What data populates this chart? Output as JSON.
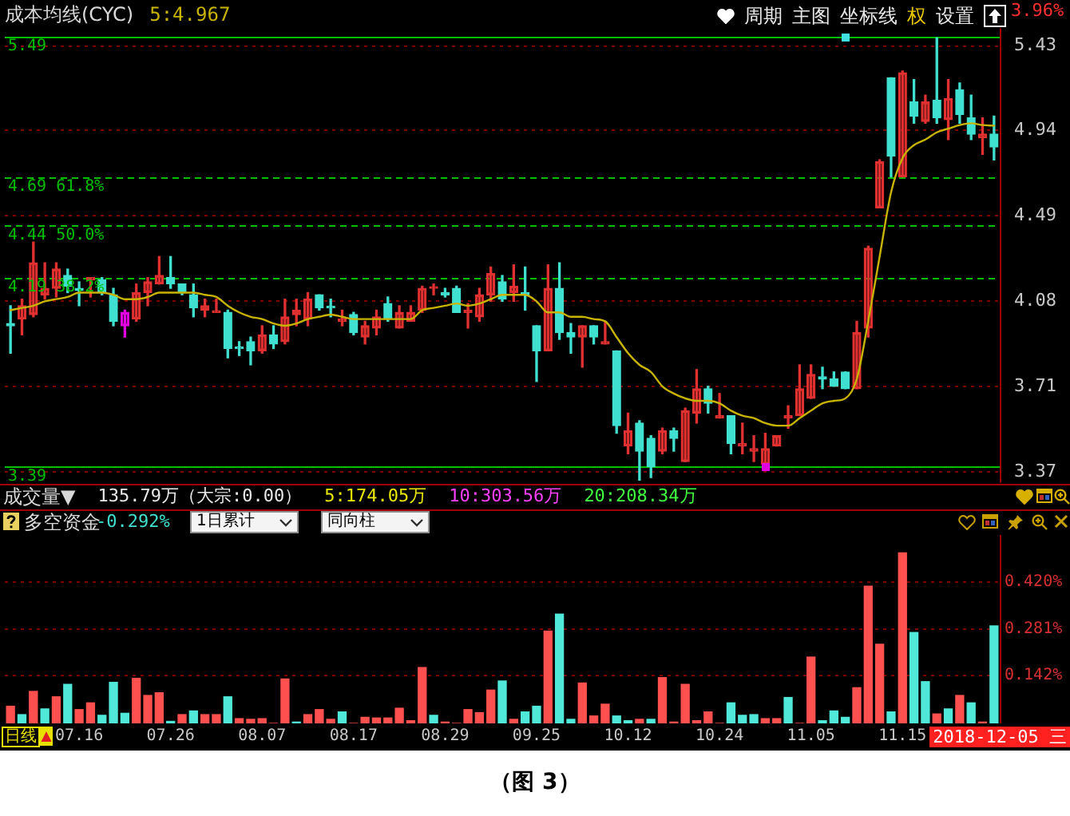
{
  "chart_data": [
    {
      "type": "candlestick",
      "title": "成本均线(CYC)",
      "categories": [
        null,
        null,
        null,
        null,
        null,
        null,
        "07.16",
        null,
        null,
        null,
        null,
        null,
        null,
        null,
        "07.26",
        null,
        null,
        null,
        null,
        null,
        null,
        null,
        "08.07",
        null,
        null,
        null,
        null,
        null,
        null,
        null,
        "08.17",
        null,
        null,
        null,
        null,
        null,
        null,
        null,
        "08.29",
        null,
        null,
        null,
        null,
        null,
        null,
        null,
        "09.25",
        null,
        null,
        null,
        null,
        null,
        null,
        null,
        "10.12",
        null,
        null,
        null,
        null,
        null,
        null,
        null,
        "10.24",
        null,
        null,
        null,
        null,
        null,
        null,
        null,
        "11.05",
        null,
        null,
        null,
        null,
        null,
        null,
        null,
        "11.15",
        null,
        null,
        null,
        null,
        null,
        null,
        null,
        null
      ],
      "ohlc": [
        [
          3.98,
          4.06,
          3.85,
          3.97
        ],
        [
          4.0,
          4.09,
          3.93,
          4.06
        ],
        [
          4.02,
          4.36,
          4.01,
          4.26
        ],
        [
          4.11,
          4.26,
          4.09,
          4.14
        ],
        [
          4.14,
          4.26,
          4.1,
          4.23
        ],
        [
          4.2,
          4.23,
          4.12,
          4.15
        ],
        [
          4.14,
          4.17,
          4.06,
          4.13
        ],
        [
          4.18,
          4.19,
          4.1,
          4.19
        ],
        [
          4.18,
          4.19,
          4.11,
          4.12
        ],
        [
          4.11,
          4.14,
          3.97,
          3.99
        ],
        [
          3.97,
          4.04,
          3.92,
          4.03
        ],
        [
          4.0,
          4.16,
          3.99,
          4.12
        ],
        [
          4.12,
          4.19,
          4.06,
          4.17
        ],
        [
          4.16,
          4.29,
          4.16,
          4.2
        ],
        [
          4.19,
          4.29,
          4.14,
          4.16
        ],
        [
          4.16,
          4.16,
          4.11,
          4.12
        ],
        [
          4.11,
          4.16,
          4.01,
          4.05
        ],
        [
          4.04,
          4.09,
          4.01,
          4.06
        ],
        [
          4.03,
          4.09,
          4.03,
          4.03
        ],
        [
          4.03,
          4.04,
          3.83,
          3.87
        ],
        [
          3.87,
          3.9,
          3.84,
          3.87
        ],
        [
          3.9,
          3.92,
          3.8,
          3.86
        ],
        [
          3.86,
          3.97,
          3.85,
          3.93
        ],
        [
          3.93,
          3.97,
          3.87,
          3.89
        ],
        [
          3.9,
          4.09,
          3.89,
          4.01
        ],
        [
          4.02,
          4.09,
          3.97,
          4.04
        ],
        [
          4.0,
          4.12,
          3.97,
          4.09
        ],
        [
          4.11,
          4.11,
          4.04,
          4.05
        ],
        [
          4.05,
          4.09,
          4.01,
          4.05
        ],
        [
          3.99,
          4.04,
          3.97,
          4.0
        ],
        [
          4.02,
          4.03,
          3.93,
          3.94
        ],
        [
          3.92,
          3.99,
          3.89,
          3.97
        ],
        [
          3.96,
          4.04,
          3.93,
          4.01
        ],
        [
          4.07,
          4.1,
          3.99,
          4.0
        ],
        [
          3.96,
          4.06,
          3.96,
          4.03
        ],
        [
          3.99,
          4.06,
          3.99,
          4.03
        ],
        [
          4.04,
          4.15,
          4.03,
          4.14
        ],
        [
          4.14,
          4.16,
          4.11,
          4.14
        ],
        [
          4.12,
          4.14,
          4.1,
          4.11
        ],
        [
          4.14,
          4.15,
          4.03,
          4.03
        ],
        [
          4.03,
          4.07,
          3.96,
          4.04
        ],
        [
          4.01,
          4.14,
          3.99,
          4.11
        ],
        [
          4.11,
          4.24,
          4.08,
          4.21
        ],
        [
          4.17,
          4.2,
          4.08,
          4.09
        ],
        [
          4.12,
          4.25,
          4.08,
          4.15
        ],
        [
          4.12,
          4.24,
          4.04,
          4.11
        ],
        [
          3.97,
          3.97,
          3.73,
          3.86
        ],
        [
          3.86,
          4.25,
          3.86,
          4.14
        ],
        [
          4.14,
          4.26,
          3.91,
          3.94
        ],
        [
          3.94,
          3.98,
          3.85,
          3.92
        ],
        [
          3.92,
          3.97,
          3.79,
          3.97
        ],
        [
          3.97,
          3.97,
          3.89,
          3.92
        ],
        [
          3.89,
          3.99,
          3.89,
          3.9
        ],
        [
          3.86,
          3.86,
          3.52,
          3.55
        ],
        [
          3.47,
          3.6,
          3.44,
          3.53
        ],
        [
          3.56,
          3.57,
          3.34,
          3.45
        ],
        [
          3.5,
          3.51,
          3.35,
          3.39
        ],
        [
          3.45,
          3.54,
          3.44,
          3.53
        ],
        [
          3.53,
          3.54,
          3.45,
          3.5
        ],
        [
          3.41,
          3.62,
          3.41,
          3.61
        ],
        [
          3.6,
          3.78,
          3.56,
          3.7
        ],
        [
          3.7,
          3.71,
          3.6,
          3.64
        ],
        [
          3.58,
          3.68,
          3.58,
          3.59
        ],
        [
          3.59,
          3.59,
          3.44,
          3.48
        ],
        [
          3.47,
          3.56,
          3.44,
          3.48
        ],
        [
          3.45,
          3.51,
          3.41,
          3.46
        ],
        [
          3.4,
          3.52,
          3.39,
          3.46
        ],
        [
          3.47,
          3.51,
          3.47,
          3.51
        ],
        [
          3.58,
          3.63,
          3.54,
          3.59
        ],
        [
          3.59,
          3.8,
          3.59,
          3.7
        ],
        [
          3.66,
          3.8,
          3.66,
          3.76
        ],
        [
          3.75,
          3.79,
          3.7,
          3.74
        ],
        [
          3.74,
          3.77,
          3.71,
          3.71
        ],
        [
          3.77,
          3.77,
          3.7,
          3.7
        ],
        [
          3.7,
          3.99,
          3.7,
          3.94
        ],
        [
          3.96,
          4.34,
          3.92,
          4.33
        ],
        [
          4.53,
          4.78,
          4.53,
          4.77
        ],
        [
          5.24,
          5.24,
          4.69,
          4.8
        ],
        [
          4.69,
          5.28,
          4.69,
          5.27
        ],
        [
          5.1,
          5.23,
          4.98,
          5.02
        ],
        [
          4.99,
          5.14,
          4.98,
          5.1
        ],
        [
          5.11,
          5.48,
          4.98,
          5.01
        ],
        [
          5.0,
          5.23,
          4.89,
          5.12
        ],
        [
          5.17,
          5.21,
          4.98,
          5.03
        ],
        [
          5.01,
          5.14,
          4.89,
          4.92
        ],
        [
          4.9,
          5.01,
          4.81,
          4.92
        ],
        [
          4.92,
          5.02,
          4.78,
          4.85
        ]
      ],
      "colors": [
        "#40e0d0",
        "#e03030",
        "#e03030",
        "#e03030",
        "#e03030",
        "#40e0d0",
        "#40e0d0",
        "#e03030",
        "#40e0d0",
        "#40e0d0",
        "#e000e0",
        "#e03030",
        "#e03030",
        "#e03030",
        "#40e0d0",
        "#40e0d0",
        "#40e0d0",
        "#e03030",
        "#e03030",
        "#40e0d0",
        "#40e0d0",
        "#40e0d0",
        "#e03030",
        "#40e0d0",
        "#e03030",
        "#e03030",
        "#e03030",
        "#40e0d0",
        "#40e0d0",
        "#e03030",
        "#40e0d0",
        "#e03030",
        "#e03030",
        "#40e0d0",
        "#e03030",
        "#e03030",
        "#e03030",
        "#e03030",
        "#40e0d0",
        "#40e0d0",
        "#e03030",
        "#e03030",
        "#e03030",
        "#40e0d0",
        "#e03030",
        "#40e0d0",
        "#40e0d0",
        "#e03030",
        "#40e0d0",
        "#40e0d0",
        "#e03030",
        "#40e0d0",
        "#e03030",
        "#40e0d0",
        "#e03030",
        "#40e0d0",
        "#40e0d0",
        "#e03030",
        "#40e0d0",
        "#e03030",
        "#e03030",
        "#40e0d0",
        "#e03030",
        "#40e0d0",
        "#e03030",
        "#e03030",
        "#e03030",
        "#e03030",
        "#e03030",
        "#e03030",
        "#e03030",
        "#40e0d0",
        "#40e0d0",
        "#40e0d0",
        "#e03030",
        "#e03030",
        "#e03030",
        "#40e0d0",
        "#e03030",
        "#40e0d0",
        "#e03030",
        "#40e0d0",
        "#e03030",
        "#40e0d0",
        "#40e0d0",
        "#e03030",
        "#40e0d0"
      ],
      "series": [
        {
          "type": "line",
          "name": "5:4.967",
          "color": "#c8b400",
          "values": [
            4.04,
            4.05,
            4.06,
            4.08,
            4.09,
            4.1,
            4.12,
            4.12,
            4.12,
            4.11,
            4.09,
            4.09,
            4.1,
            4.12,
            4.12,
            4.12,
            4.12,
            4.11,
            4.1,
            4.06,
            4.03,
            4.01,
            4.0,
            3.98,
            3.97,
            3.98,
            4.0,
            4.01,
            4.02,
            4.01,
            4.0,
            4.0,
            4.0,
            4.0,
            4.0,
            4.0,
            4.04,
            4.05,
            4.06,
            4.07,
            4.06,
            4.07,
            4.09,
            4.11,
            4.11,
            4.11,
            4.08,
            4.03,
            4.03,
            4.01,
            4.01,
            4.0,
            3.99,
            3.92,
            3.85,
            3.8,
            3.77,
            3.71,
            3.68,
            3.66,
            3.65,
            3.65,
            3.64,
            3.61,
            3.59,
            3.58,
            3.56,
            3.55,
            3.55,
            3.58,
            3.61,
            3.64,
            3.65,
            3.66,
            3.74,
            3.99,
            4.29,
            4.61,
            4.79,
            4.86,
            4.89,
            4.93,
            4.95,
            4.97,
            4.98,
            4.97,
            4.967
          ]
        }
      ],
      "ylim": [
        3.33,
        5.54
      ],
      "yticks": [
        3.37,
        3.71,
        4.08,
        4.49,
        4.94,
        5.43
      ],
      "log": "y",
      "grid": "y",
      "tick_labels": "y",
      "ref_lines": [
        {
          "axis": "y",
          "value": 5.49,
          "label": "5.49",
          "color": "#00c000",
          "line_style": "solid"
        },
        {
          "axis": "y",
          "value": 4.69,
          "label": "4.69 61.8%",
          "color": "#00c000",
          "line_style": "dashed"
        },
        {
          "axis": "y",
          "value": 4.44,
          "label": "4.44 50.0%",
          "color": "#00c000",
          "line_style": "dashed"
        },
        {
          "axis": "y",
          "value": 4.19,
          "label": "4.19 38.2%",
          "color": "#00c000",
          "line_style": "dashed"
        },
        {
          "axis": "y",
          "value": 3.39,
          "label": "3.39",
          "color": "#00c000",
          "line_style": "solid"
        }
      ],
      "annotations": [
        "周期",
        "主图",
        "坐标线",
        "权",
        "设置",
        "3.96%"
      ]
    },
    {
      "type": "other",
      "title": "成交量▼",
      "annotations": [
        "135.79万（大宗:0.00）",
        "5:174.05万",
        "10:303.56万",
        "20:208.34万"
      ]
    },
    {
      "type": "bar",
      "title": "多空资金",
      "categories": [
        null,
        null,
        null,
        null,
        null,
        null,
        "07.16",
        null,
        null,
        null,
        null,
        null,
        null,
        null,
        "07.26",
        null,
        null,
        null,
        null,
        null,
        null,
        null,
        "08.07",
        null,
        null,
        null,
        null,
        null,
        null,
        null,
        "08.17",
        null,
        null,
        null,
        null,
        null,
        null,
        null,
        "08.29",
        null,
        null,
        null,
        null,
        null,
        null,
        null,
        "09.25",
        null,
        null,
        null,
        null,
        null,
        null,
        null,
        "10.12",
        null,
        null,
        null,
        null,
        null,
        null,
        null,
        "10.24",
        null,
        null,
        null,
        null,
        null,
        null,
        null,
        "11.05",
        null,
        null,
        null,
        null,
        null,
        null,
        null,
        "11.15",
        null,
        null,
        null,
        null,
        null,
        null,
        null,
        null
      ],
      "values": [
        0.051,
        0.026,
        0.095,
        0.043,
        0.079,
        0.116,
        0.041,
        0.061,
        0.024,
        0.122,
        0.03,
        0.134,
        0.083,
        0.091,
        0.006,
        0.026,
        0.037,
        0.026,
        0.026,
        0.079,
        0.014,
        0.012,
        0.014,
        0,
        0.132,
        0.004,
        0.026,
        0.041,
        0.012,
        0.034,
        0,
        0.018,
        0.016,
        0.016,
        0.045,
        0.008,
        0.166,
        0.024,
        0.004,
        0,
        0.041,
        0.032,
        0.099,
        0.126,
        0.012,
        0.034,
        0.051,
        0.274,
        0.325,
        0.012,
        0.12,
        0.022,
        0.057,
        0.022,
        0.008,
        0.012,
        0.012,
        0.136,
        0.004,
        0.116,
        0.008,
        0.034,
        0,
        0.061,
        0.024,
        0.026,
        0.014,
        0.014,
        0.077,
        0,
        0.197,
        0.008,
        0.037,
        0.018,
        0.106,
        0.408,
        0.235,
        0.034,
        0.507,
        0.27,
        0.124,
        0.028,
        0.043,
        0.083,
        0.061,
        0.004,
        0.29
      ],
      "colors": [
        "#ff5050",
        "#50e8d8",
        "#ff5050",
        "#50e8d8",
        "#ff5050",
        "#50e8d8",
        "#ff5050",
        "#ff5050",
        "#50e8d8",
        "#50e8d8",
        "#50e8d8",
        "#ff5050",
        "#ff5050",
        "#ff5050",
        "#50e8d8",
        "#ff5050",
        "#50e8d8",
        "#ff5050",
        "#ff5050",
        "#50e8d8",
        "#ff5050",
        "#ff5050",
        "#ff5050",
        "#ff5050",
        "#ff5050",
        "#50e8d8",
        "#ff5050",
        "#ff5050",
        "#ff5050",
        "#50e8d8",
        "#ff5050",
        "#ff5050",
        "#ff5050",
        "#ff5050",
        "#ff5050",
        "#ff5050",
        "#ff5050",
        "#50e8d8",
        "#ff5050",
        "#ff5050",
        "#ff5050",
        "#ff5050",
        "#ff5050",
        "#50e8d8",
        "#ff5050",
        "#50e8d8",
        "#50e8d8",
        "#ff5050",
        "#50e8d8",
        "#50e8d8",
        "#ff5050",
        "#ff5050",
        "#ff5050",
        "#50e8d8",
        "#50e8d8",
        "#ff5050",
        "#50e8d8",
        "#ff5050",
        "#ff5050",
        "#ff5050",
        "#ff5050",
        "#ff5050",
        "#ff5050",
        "#50e8d8",
        "#50e8d8",
        "#50e8d8",
        "#ff5050",
        "#ff5050",
        "#50e8d8",
        "#ff5050",
        "#ff5050",
        "#50e8d8",
        "#50e8d8",
        "#50e8d8",
        "#ff5050",
        "#ff5050",
        "#ff5050",
        "#50e8d8",
        "#ff5050",
        "#50e8d8",
        "#50e8d8",
        "#ff5050",
        "#50e8d8",
        "#ff5050",
        "#50e8d8",
        "#ff5050",
        "#50e8d8"
      ],
      "ylim": [
        0,
        0.56
      ],
      "yticks": [
        {
          "value": 0.142,
          "label": "0.142%"
        },
        {
          "value": 0.281,
          "label": "0.281%"
        },
        {
          "value": 0.42,
          "label": "0.420%"
        }
      ],
      "grid": "y",
      "annotations": [
        "-0.292%",
        "1日累计",
        "同向柱",
        "日线",
        "2018-12-05 三",
        "（图 3）"
      ]
    }
  ]
}
